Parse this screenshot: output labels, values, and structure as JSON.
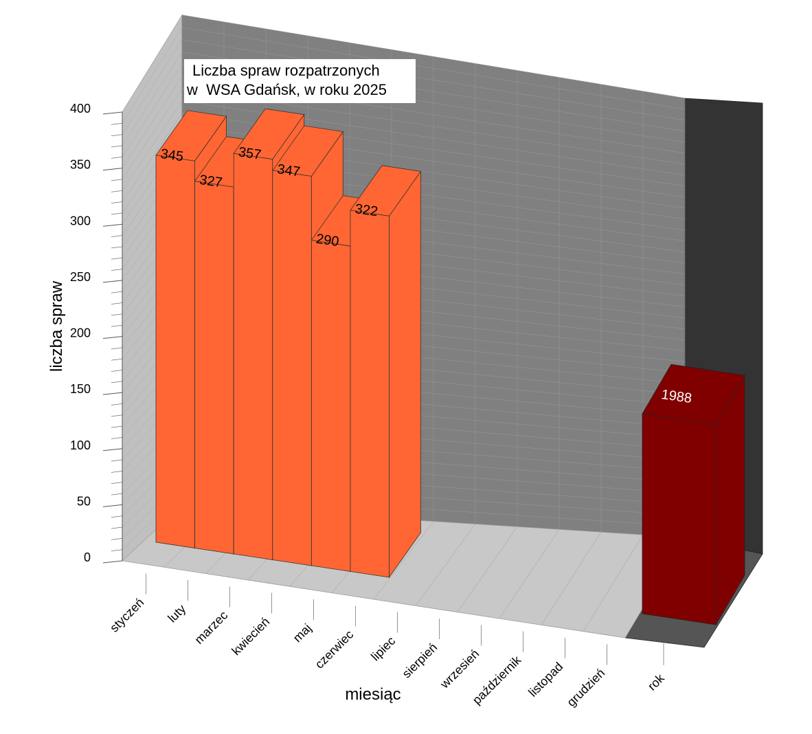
{
  "chart_data": {
    "type": "bar",
    "title_lines": [
      "Liczba spraw rozpatrzonych",
      "w  WSA Gdańsk, w roku 2025"
    ],
    "xlabel": "miesiąc",
    "ylabel": "liczba spraw",
    "ylim": [
      0,
      400
    ],
    "yticks": [
      "0",
      "50",
      "100",
      "150",
      "200",
      "250",
      "300",
      "350",
      "400"
    ],
    "categories": [
      "styczeń",
      "luty",
      "marzec",
      "kwiecień",
      "maj",
      "czerwiec",
      "lipiec",
      "sierpień",
      "wrzesień",
      "październik",
      "listopad",
      "grudzień"
    ],
    "values": [
      345,
      327,
      357,
      347,
      290,
      322,
      null,
      null,
      null,
      null,
      null,
      null
    ],
    "total": {
      "label": "rok",
      "value": 1988,
      "drawn_as": 150
    },
    "three_d": true,
    "grid": true,
    "colors": {
      "bar_front": "#ff6633",
      "bar_top": "#ff6633",
      "bar_side": "#ff6633",
      "total_front": "#800000",
      "back_wall": "#808080",
      "side_wall": "#c0c0c0",
      "floor": "#c8c8c8",
      "total_wall": "#333333",
      "total_floor": "#555555",
      "grid": "#9a9a9a"
    }
  }
}
